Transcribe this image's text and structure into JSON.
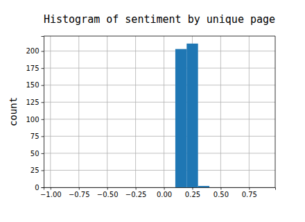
{
  "chart_data": {
    "type": "histogram",
    "title": "Histogram of sentiment by unique page",
    "y_label": "count",
    "bins": [
      0.1,
      0.2,
      0.3,
      0.4
    ],
    "counts": [
      203,
      211,
      2
    ],
    "color": "#1f77b4",
    "xlim": [
      -1.06,
      0.98
    ],
    "xticks": [
      {
        "value": -1,
        "label": "−1.00"
      },
      {
        "value": -0.75,
        "label": "−0.75"
      },
      {
        "value": -0.5,
        "label": "−0.50"
      },
      {
        "value": -0.25,
        "label": "−0.25"
      },
      {
        "value": 0,
        "label": "0.00"
      },
      0.25,
      {
        "value": 0.5,
        "label": "0.50"
      },
      0.75
    ],
    "ylim": [
      0,
      222
    ],
    "yticks": [
      0,
      25,
      50,
      75,
      100,
      125,
      150,
      175,
      200
    ],
    "grid": true
  }
}
